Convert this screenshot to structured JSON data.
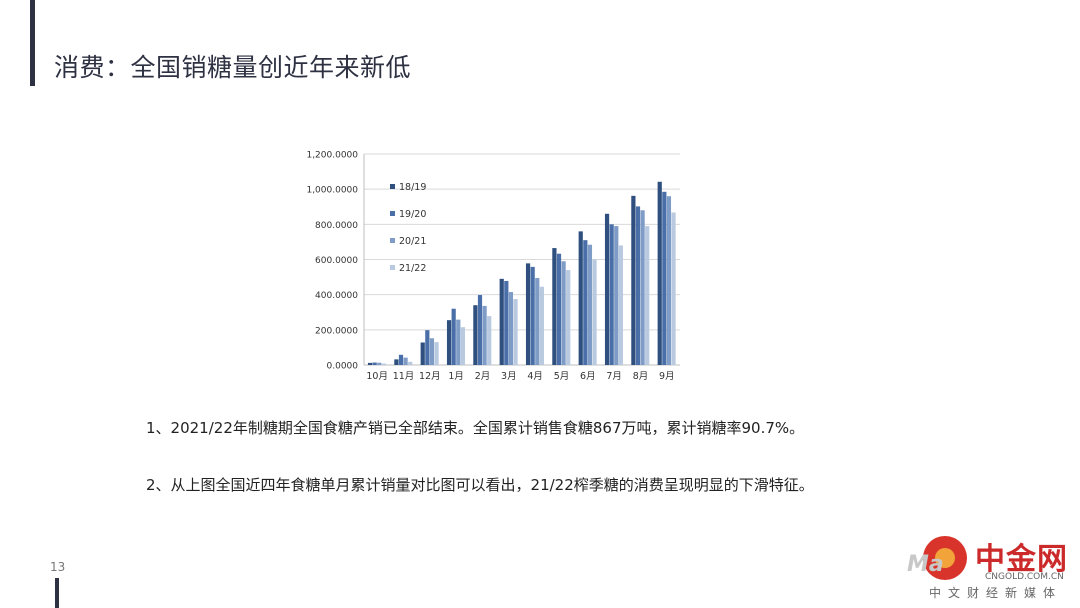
{
  "slide": {
    "title": "消费：全国销糖量创近年来新低",
    "page_number": "13"
  },
  "bullets": [
    "1、2021/22年制糖期全国食糖产销已全部结束。全国累计销售食糖867万吨，累计销糖率90.7%。",
    "2、从上图全国近四年食糖单月累计销量对比图可以看出，21/22榨季糖的消费呈现明显的下滑特征。"
  ],
  "watermark": {
    "brand_cn": "中金网",
    "brand_letters": "Ma",
    "site": "CNGOLD.COM.CN",
    "slogan": "中文财经新媒体",
    "colors": {
      "red": "#cc2a2a",
      "orange": "#f2a43a"
    }
  },
  "chart_data": {
    "type": "bar",
    "title": "",
    "xlabel": "",
    "ylabel": "",
    "ylim": [
      0,
      1200
    ],
    "y_ticks": [
      "0.0000",
      "200.0000",
      "400.0000",
      "600.0000",
      "800.0000",
      "1,000.0000",
      "1,200.0000"
    ],
    "y_tick_values": [
      0,
      200,
      400,
      600,
      800,
      1000,
      1200
    ],
    "categories": [
      "10月",
      "11月",
      "12月",
      "1月",
      "2月",
      "3月",
      "4月",
      "5月",
      "6月",
      "7月",
      "8月",
      "9月"
    ],
    "legend_position": "top-left",
    "grid": true,
    "series": [
      {
        "name": "18/19",
        "color": "#2f4f7f",
        "values": [
          12,
          32,
          128,
          255,
          340,
          490,
          578,
          665,
          760,
          860,
          962,
          1042
        ]
      },
      {
        "name": "19/20",
        "color": "#4a6fa8",
        "values": [
          14,
          58,
          198,
          320,
          398,
          478,
          558,
          633,
          710,
          800,
          902,
          985
        ]
      },
      {
        "name": "20/21",
        "color": "#7f9cc7",
        "values": [
          13,
          42,
          152,
          258,
          336,
          415,
          495,
          590,
          684,
          790,
          880,
          960
        ]
      },
      {
        "name": "21/22",
        "color": "#b9c9e0",
        "values": [
          8,
          18,
          130,
          215,
          278,
          375,
          445,
          540,
          600,
          680,
          790,
          867
        ]
      }
    ]
  }
}
